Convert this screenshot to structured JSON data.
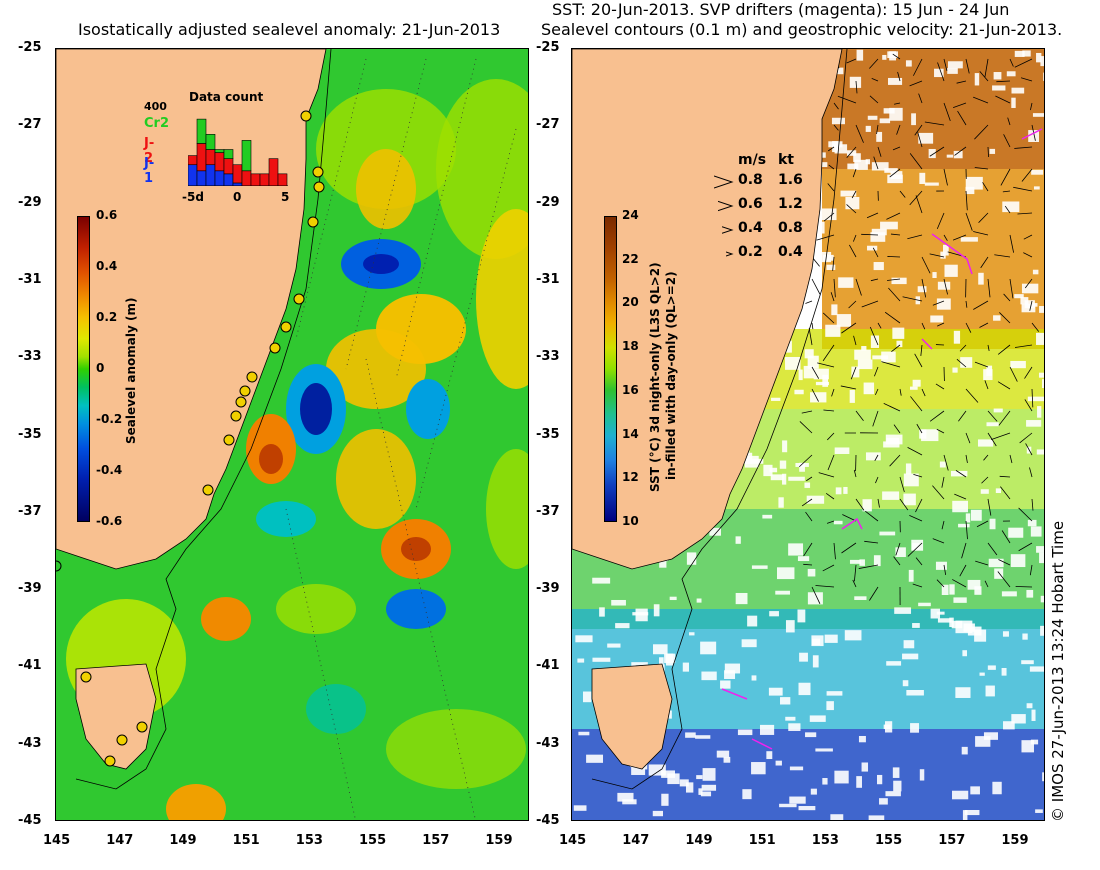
{
  "left_panel": {
    "title": "Isostatically adjusted sealevel anomaly: 21-Jun-2013",
    "colorbar": {
      "label": "Sealevel anomaly (m)",
      "ticks": [
        "0.6",
        "0.4",
        "0.2",
        "0",
        "-0.2",
        "-0.4",
        "-0.6"
      ]
    },
    "histogram": {
      "title": "Data count",
      "ymax_label": "400",
      "legend": [
        {
          "name": "Cr2",
          "color": "#22cc22"
        },
        {
          "name": "J-2",
          "color": "#ee1111"
        },
        {
          "name": "J-1",
          "color": "#1133ee"
        }
      ],
      "x_ticks": [
        "-5d",
        "0",
        "5"
      ],
      "bars": [
        {
          "day": -5,
          "blue": 0.35,
          "red": 0.15,
          "green": 0
        },
        {
          "day": -4,
          "blue": 0.25,
          "red": 0.45,
          "green": 0.4
        },
        {
          "day": -3,
          "blue": 0.35,
          "red": 0.25,
          "green": 0.25
        },
        {
          "day": -2,
          "blue": 0.25,
          "red": 0.3,
          "green": 0.05
        },
        {
          "day": -1,
          "blue": 0.2,
          "red": 0.25,
          "green": 0.15
        },
        {
          "day": 0,
          "blue": 0.05,
          "red": 0.3,
          "green": 0
        },
        {
          "day": 1,
          "blue": 0,
          "red": 0.25,
          "green": 0.5
        },
        {
          "day": 2,
          "blue": 0,
          "red": 0.2,
          "green": 0
        },
        {
          "day": 3,
          "blue": 0,
          "red": 0.2,
          "green": 0
        },
        {
          "day": 4,
          "blue": 0,
          "red": 0.45,
          "green": 0
        },
        {
          "day": 5,
          "blue": 0,
          "red": 0.2,
          "green": 0
        }
      ]
    }
  },
  "right_panel": {
    "title_line1": "SST: 20-Jun-2013. SVP drifters (magenta): 15 Jun - 24 Jun",
    "title_line2": "Sealevel contours (0.1 m) and geostrophic velocity: 21-Jun-2013.",
    "colorbar": {
      "label_line1": "SST (°C) 3d night-only (L3S QL>2)",
      "label_line2": "in-filled with day-only (QL>=2)",
      "ticks": [
        "24",
        "22",
        "20",
        "18",
        "16",
        "14",
        "12",
        "10"
      ]
    },
    "velocity_legend": {
      "header_ms": "m/s",
      "header_kt": "kt",
      "rows": [
        {
          "ms": "0.8",
          "kt": "1.6"
        },
        {
          "ms": "0.6",
          "kt": "1.2"
        },
        {
          "ms": "0.4",
          "kt": "0.8"
        },
        {
          "ms": "0.2",
          "kt": "0.4"
        }
      ]
    }
  },
  "axes": {
    "lat_ticks": [
      "-25",
      "-27",
      "-29",
      "-31",
      "-33",
      "-35",
      "-37",
      "-39",
      "-41",
      "-43",
      "-45"
    ],
    "lon_ticks": [
      "145",
      "147",
      "149",
      "151",
      "153",
      "155",
      "157",
      "159"
    ],
    "lat_range": [
      -45,
      -25
    ],
    "lon_range": [
      145,
      160
    ]
  },
  "copyright": "© IMOS 27-Jun-2013 13:24 Hobart Time",
  "colors": {
    "land": "#f8c090",
    "ocean_base": "#30c830",
    "drifter": "#ee22ee"
  }
}
